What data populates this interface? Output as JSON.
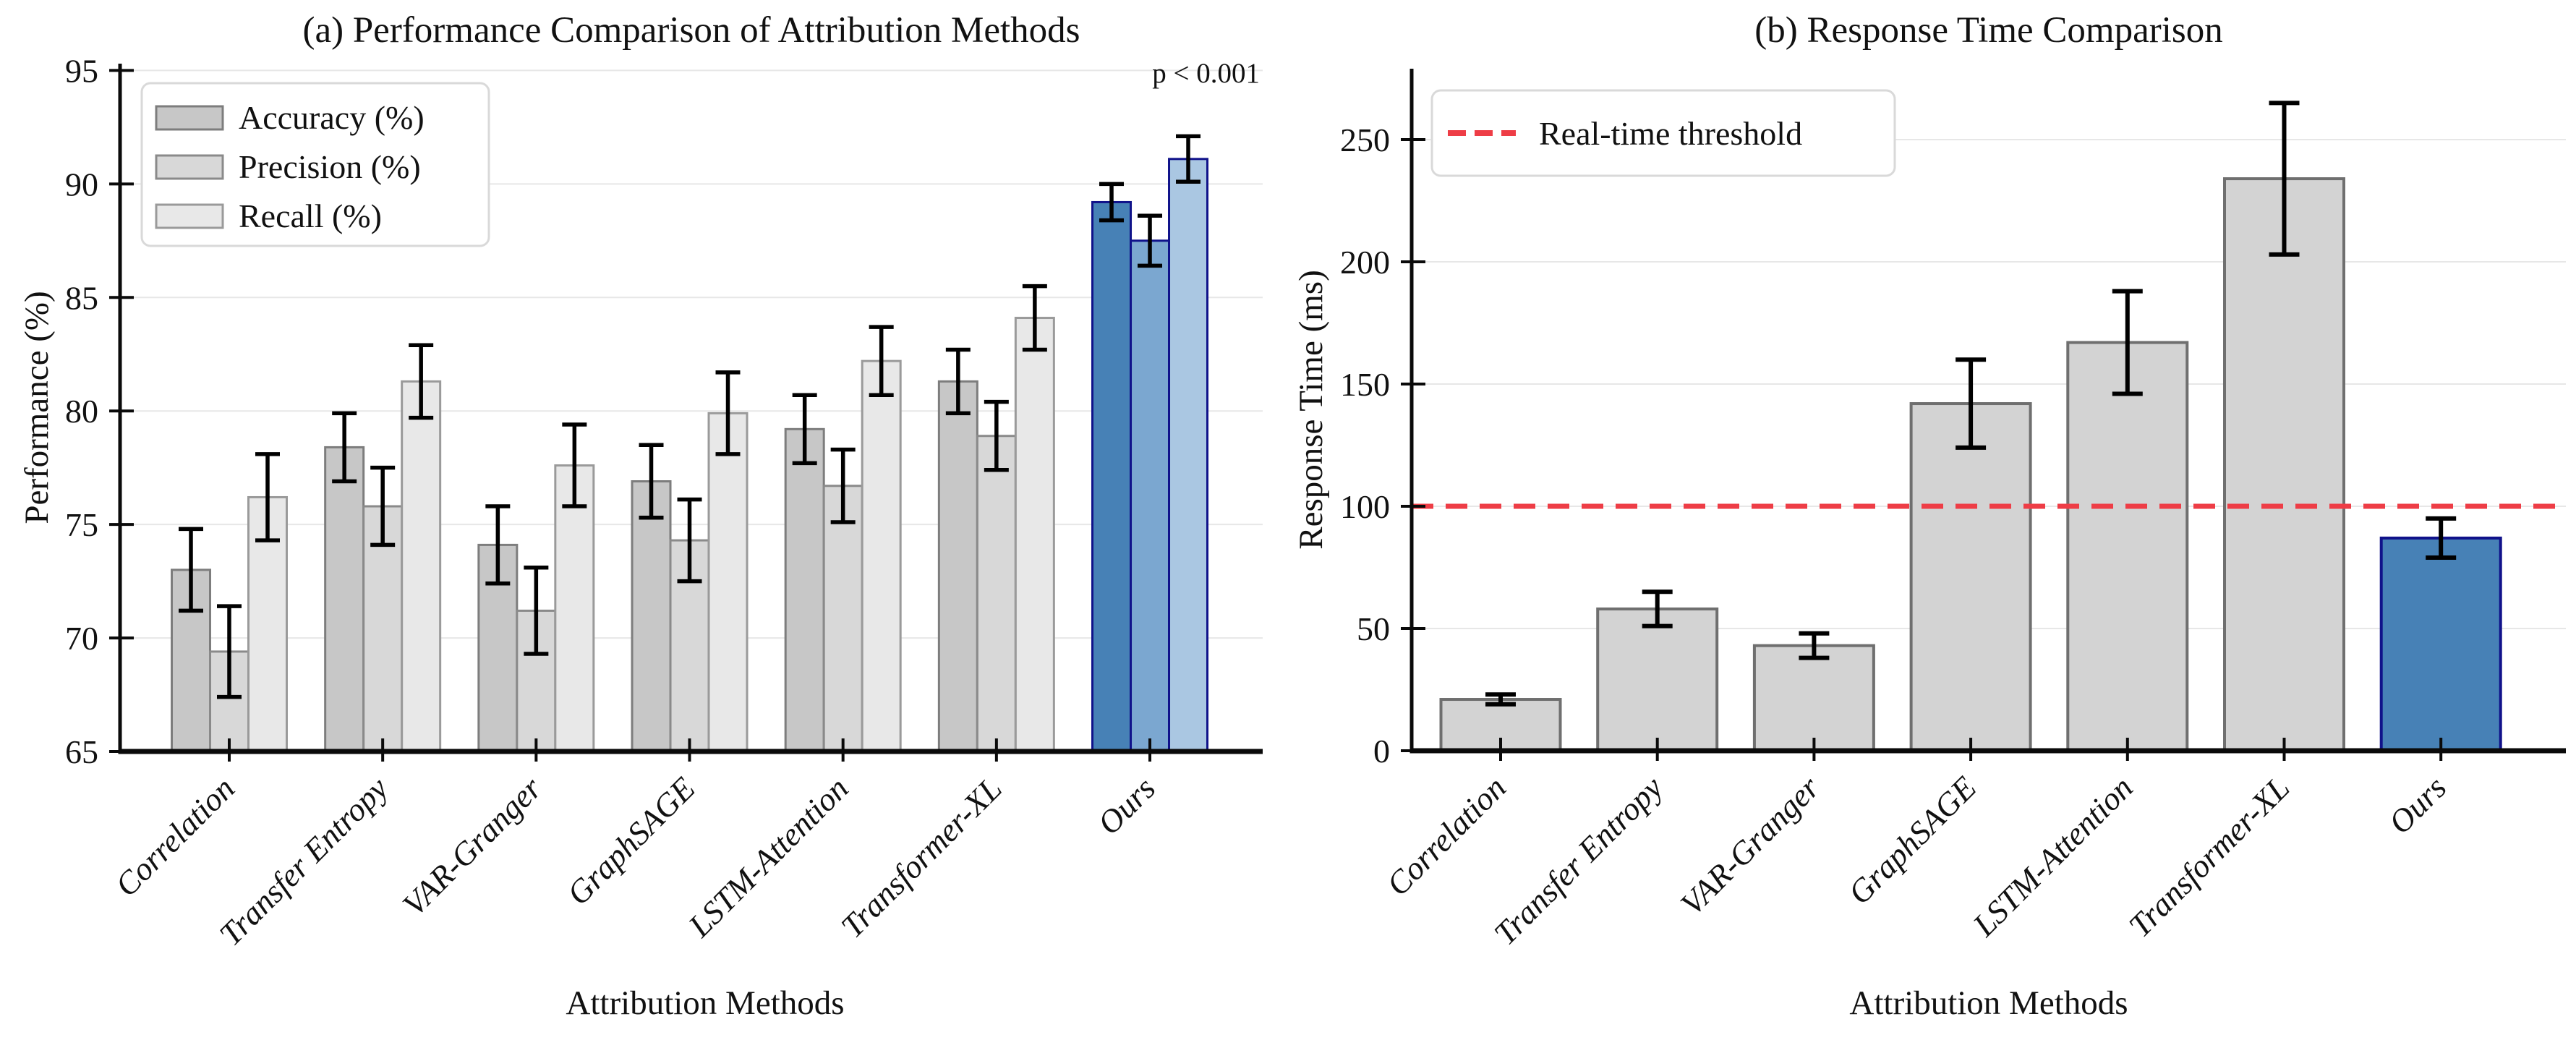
{
  "background": "#ffffff",
  "grid_color": "#e7e7e7",
  "axis_color": "#0a0a0a",
  "text_color": "#111111",
  "chart_data": [
    {
      "id": "panel-a",
      "type": "bar",
      "title": "(a) Performance Comparison of Attribution Methods",
      "xlabel": "Attribution Methods",
      "ylabel": "Performance (%)",
      "annotation": "p < 0.001",
      "legend_position": "upper left",
      "grid": true,
      "categories": [
        "Correlation",
        "Transfer Entropy",
        "VAR-Granger",
        "GraphSAGE",
        "LSTM-Attention",
        "Transformer-XL",
        "Ours"
      ],
      "ylim": [
        65,
        95.3
      ],
      "yticks": [
        65,
        70,
        75,
        80,
        85,
        90,
        95
      ],
      "series": [
        {
          "name": "Accuracy (%)",
          "values": [
            73.0,
            78.4,
            74.1,
            76.9,
            79.2,
            81.3,
            89.2
          ],
          "errors": [
            1.8,
            1.5,
            1.7,
            1.6,
            1.5,
            1.4,
            0.8
          ],
          "fill": "#c7c7c7",
          "edge": "#7d7d7d"
        },
        {
          "name": "Precision (%)",
          "values": [
            69.4,
            75.8,
            71.2,
            74.3,
            76.7,
            78.9,
            87.5
          ],
          "errors": [
            2.0,
            1.7,
            1.9,
            1.8,
            1.6,
            1.5,
            1.1
          ],
          "fill": "#d8d8d8",
          "edge": "#8a8a8a"
        },
        {
          "name": "Recall (%)",
          "values": [
            76.2,
            81.3,
            77.6,
            79.9,
            82.2,
            84.1,
            91.1
          ],
          "errors": [
            1.9,
            1.6,
            1.8,
            1.8,
            1.5,
            1.4,
            1.0
          ],
          "fill": "#e8e8e8",
          "edge": "#9a9a9a"
        }
      ],
      "highlight": {
        "category": "Ours",
        "fills": [
          "#4781b6",
          "#7ba7d0",
          "#aac7e2"
        ],
        "edge": "#10128a"
      }
    },
    {
      "id": "panel-b",
      "type": "bar",
      "title": "(b) Response Time Comparison",
      "xlabel": "Attribution Methods",
      "ylabel": "Response Time (ms)",
      "grid": true,
      "categories": [
        "Correlation",
        "Transfer Entropy",
        "VAR-Granger",
        "GraphSAGE",
        "LSTM-Attention",
        "Transformer-XL",
        "Ours"
      ],
      "ylim": [
        0,
        279
      ],
      "yticks": [
        0,
        50,
        100,
        150,
        200,
        250
      ],
      "values": [
        21,
        58,
        43,
        142,
        167,
        234,
        87
      ],
      "errors": [
        2,
        7,
        5,
        18,
        21,
        31,
        8
      ],
      "bar_fill": "#d3d3d3",
      "bar_edge": "#6f6f6f",
      "highlight": {
        "category": "Ours",
        "fill": "#4781b6",
        "edge": "#10128a"
      },
      "threshold": {
        "value": 100,
        "label": "Real-time threshold",
        "color": "#ee3d46",
        "style": "dashed",
        "legend_position": "upper left"
      }
    }
  ]
}
